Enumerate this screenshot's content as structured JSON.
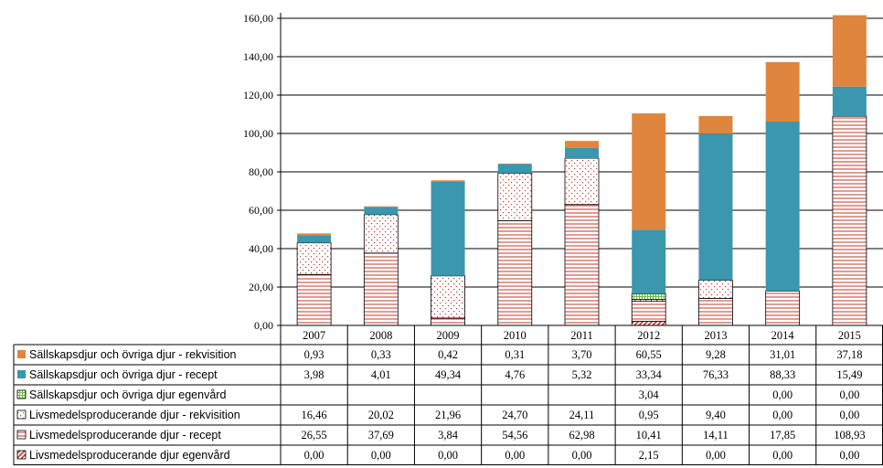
{
  "chart_data": {
    "type": "bar",
    "stacked": true,
    "title": "",
    "xlabel": "",
    "ylabel": "",
    "ylim": [
      0,
      160
    ],
    "y_tick_step": 20,
    "y_tick_labels": [
      "0,00",
      "20,00",
      "40,00",
      "60,00",
      "80,00",
      "100,00",
      "120,00",
      "140,00",
      "160,00"
    ],
    "categories": [
      "2007",
      "2008",
      "2009",
      "2010",
      "2011",
      "2012",
      "2013",
      "2014",
      "2015"
    ],
    "grid": true,
    "series": [
      {
        "name": "Livsmedelsproducerande djur egenvård",
        "color": "#c0392b",
        "pattern": "diagonal-red",
        "values": [
          0.0,
          0.0,
          0.0,
          0.0,
          0.0,
          2.15,
          0.0,
          0.0,
          0.0
        ],
        "labels": [
          "0,00",
          "0,00",
          "0,00",
          "0,00",
          "0,00",
          "2,15",
          "0,00",
          "0,00",
          "0,00"
        ]
      },
      {
        "name": "Livsmedelsproducerande djur - recept",
        "color": "#c0392b",
        "pattern": "horizontal-red",
        "values": [
          26.55,
          37.69,
          3.84,
          54.56,
          62.98,
          10.41,
          14.11,
          17.85,
          108.93
        ],
        "labels": [
          "26,55",
          "37,69",
          "3,84",
          "54,56",
          "62,98",
          "10,41",
          "14,11",
          "17,85",
          "108,93"
        ]
      },
      {
        "name": "Livsmedelsproducerande djur - rekvisition",
        "color": "#c0392b",
        "pattern": "dotted-red",
        "values": [
          16.46,
          20.02,
          21.96,
          24.7,
          24.11,
          0.95,
          9.4,
          0.0,
          0.0
        ],
        "labels": [
          "16,46",
          "20,02",
          "21,96",
          "24,70",
          "24,11",
          "0,95",
          "9,40",
          "0,00",
          "0,00"
        ]
      },
      {
        "name": "Sällskapsdjur och övriga djur egenvård",
        "color": "#6fbf3f",
        "pattern": "grid-green",
        "values": [
          null,
          null,
          null,
          null,
          null,
          3.04,
          null,
          0.0,
          0.0
        ],
        "labels": [
          "",
          "",
          "",
          "",
          "",
          "3,04",
          "",
          "0,00",
          "0,00"
        ]
      },
      {
        "name": "Sällskapsdjur och övriga djur - recept",
        "color": "#3a97ad",
        "pattern": "solid",
        "values": [
          3.98,
          4.01,
          49.34,
          4.76,
          5.32,
          33.34,
          76.33,
          88.33,
          15.49
        ],
        "labels": [
          "3,98",
          "4,01",
          "49,34",
          "4,76",
          "5,32",
          "33,34",
          "76,33",
          "88,33",
          "15,49"
        ]
      },
      {
        "name": "Sällskapsdjur och övriga djur - rekvisition",
        "color": "#e0853d",
        "pattern": "solid",
        "values": [
          0.93,
          0.33,
          0.42,
          0.31,
          3.7,
          60.55,
          9.28,
          31.01,
          37.18
        ],
        "labels": [
          "0,93",
          "0,33",
          "0,42",
          "0,31",
          "3,70",
          "60,55",
          "9,28",
          "31,01",
          "37,18"
        ]
      }
    ],
    "table_row_order": [
      5,
      4,
      3,
      2,
      1,
      0
    ]
  }
}
